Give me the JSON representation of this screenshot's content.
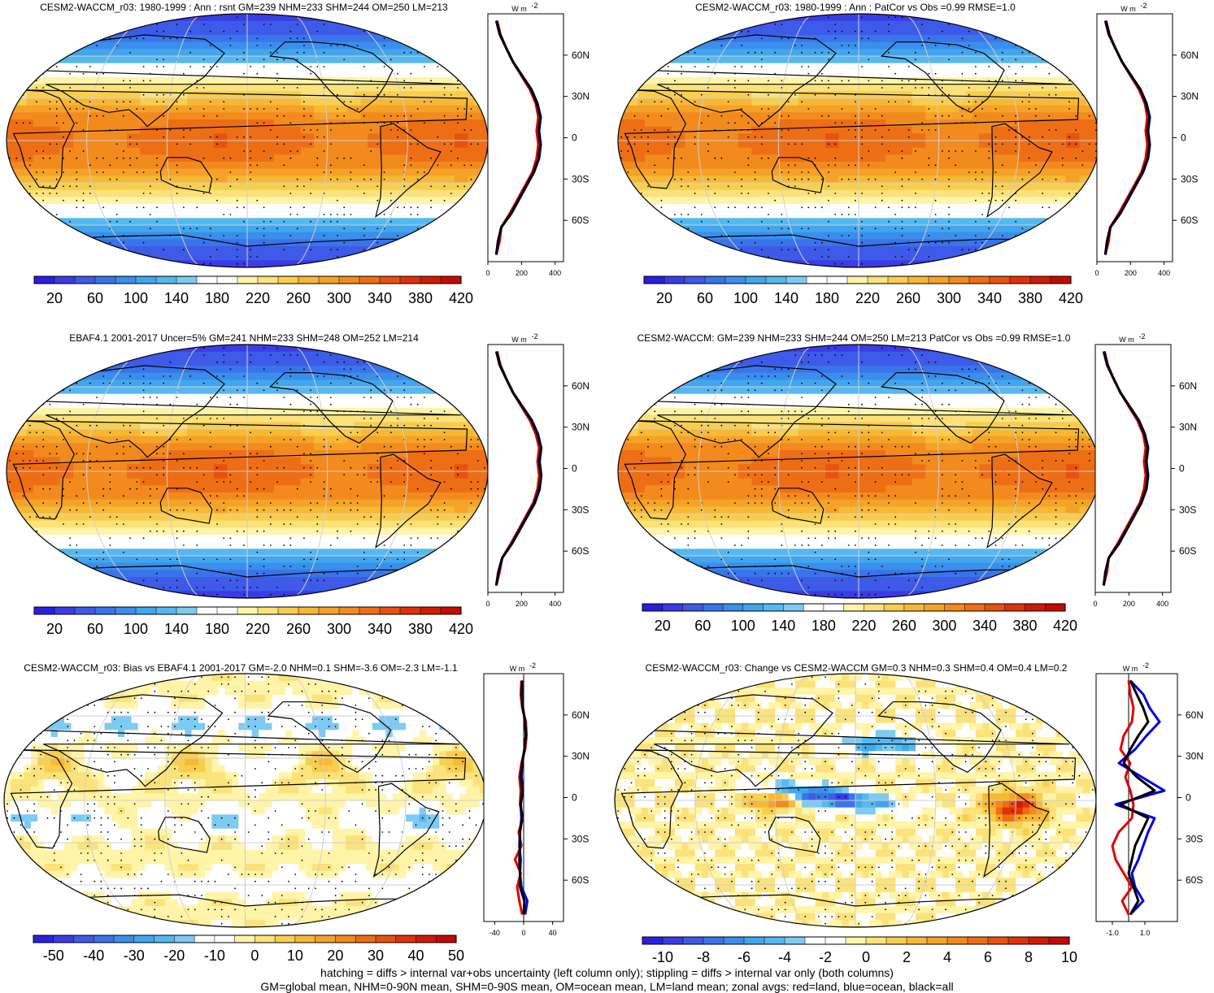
{
  "unit_label": "W m",
  "unit_exponent": "-2",
  "colorbar_full": {
    "colors": [
      "#2a1fe0",
      "#3a3ce6",
      "#3e5ae8",
      "#3a74ea",
      "#3b8eec",
      "#40a6ee",
      "#56b8f0",
      "#7dcaf2",
      "#ffffff",
      "#ffffff",
      "#fff4a8",
      "#fbe27a",
      "#f9cd4e",
      "#f7b833",
      "#f5a228",
      "#f28a1e",
      "#ee6e16",
      "#e9510f",
      "#e13109",
      "#d11a05",
      "#c40a02"
    ],
    "labels": [
      "20",
      "60",
      "100",
      "140",
      "180",
      "220",
      "260",
      "300",
      "340",
      "380",
      "420"
    ]
  },
  "colorbar_bias": {
    "colors": [
      "#2a1fe0",
      "#3a3ce6",
      "#3e5ae8",
      "#3a74ea",
      "#3b8eec",
      "#40a6ee",
      "#56b8f0",
      "#7dcaf2",
      "#ffffff",
      "#ffffff",
      "#fff4a8",
      "#fbe27a",
      "#f9cd4e",
      "#f7b833",
      "#f5a228",
      "#f28a1e",
      "#ee6e16",
      "#e9510f",
      "#e13109",
      "#d11a05",
      "#c40a02"
    ],
    "labels": [
      "-50",
      "-40",
      "-30",
      "-20",
      "-10",
      "0",
      "10",
      "20",
      "30",
      "40",
      "50"
    ]
  },
  "colorbar_change": {
    "colors": [
      "#2a1fe0",
      "#3a3ce6",
      "#3e5ae8",
      "#3a74ea",
      "#3b8eec",
      "#40a6ee",
      "#56b8f0",
      "#7dcaf2",
      "#ffffff",
      "#ffffff",
      "#fff4a8",
      "#fbe27a",
      "#f9cd4e",
      "#f7b833",
      "#f5a228",
      "#f28a1e",
      "#ee6e16",
      "#e9510f",
      "#e13109",
      "#d11a05",
      "#c40a02"
    ],
    "labels": [
      "-10",
      "-8",
      "-6",
      "-4",
      "-2",
      "0",
      "2",
      "4",
      "6",
      "8",
      "10"
    ]
  },
  "chart_data": [
    {
      "type": "heatmap",
      "title": "CESM2-WACCM_r03: 1980-1999 : Ann : rsnt GM=239 NHM=233 SHM=244 OM=250 LM=213",
      "field": "mean",
      "colorbar": "colorbar_full",
      "profile": {
        "type": "line",
        "xticks": [
          "0",
          "200",
          "400"
        ],
        "xlim": [
          0,
          450
        ],
        "yticks": [
          "60N",
          "30N",
          "0",
          "30S",
          "60S"
        ],
        "lat": [
          -85,
          -75,
          -65,
          -55,
          -45,
          -35,
          -25,
          -15,
          -5,
          5,
          15,
          25,
          35,
          45,
          55,
          65,
          75,
          85
        ],
        "series": [
          {
            "name": "red",
            "color": "#e00000",
            "values": [
              50,
              70,
              80,
              130,
              175,
              220,
              265,
              290,
              300,
              290,
              300,
              285,
              250,
              200,
              150,
              110,
              75,
              55
            ]
          },
          {
            "name": "blue",
            "color": "#0000e0",
            "values": [
              50,
              60,
              80,
              140,
              185,
              230,
              275,
              305,
              315,
              305,
              315,
              295,
              260,
              205,
              150,
              110,
              70,
              50
            ]
          },
          {
            "name": "black",
            "color": "#000000",
            "values": [
              50,
              62,
              80,
              138,
              183,
              228,
              272,
              302,
              312,
              302,
              312,
              292,
              258,
              204,
              150,
              110,
              72,
              52
            ]
          }
        ]
      }
    },
    {
      "type": "heatmap",
      "title": "CESM2-WACCM_r03: 1980-1999 : Ann : PatCor vs Obs =0.99 RMSE=1.0",
      "field": "mean",
      "colorbar": "colorbar_full",
      "profile": {
        "type": "line",
        "xticks": [
          "0",
          "200",
          "400"
        ],
        "xlim": [
          0,
          450
        ],
        "yticks": [
          "60N",
          "30N",
          "0",
          "30S",
          "60S"
        ],
        "lat": [
          -85,
          -75,
          -65,
          -55,
          -45,
          -35,
          -25,
          -15,
          -5,
          5,
          15,
          25,
          35,
          45,
          55,
          65,
          75,
          85
        ],
        "series": [
          {
            "name": "red",
            "color": "#e00000",
            "values": [
              50,
              70,
              80,
              130,
              175,
              220,
              265,
              290,
              300,
              290,
              300,
              285,
              250,
              200,
              150,
              110,
              75,
              55
            ]
          },
          {
            "name": "blue",
            "color": "#0000e0",
            "values": [
              50,
              60,
              80,
              140,
              185,
              230,
              275,
              305,
              315,
              305,
              315,
              295,
              260,
              205,
              150,
              110,
              70,
              50
            ]
          },
          {
            "name": "black",
            "color": "#000000",
            "values": [
              50,
              62,
              80,
              138,
              183,
              228,
              272,
              302,
              312,
              302,
              312,
              292,
              258,
              204,
              150,
              110,
              72,
              52
            ]
          }
        ]
      }
    },
    {
      "type": "heatmap",
      "title": "EBAF4.1 2001-2017 Uncer=5% GM=241 NHM=233 SHM=248 OM=252 LM=214",
      "field": "mean",
      "colorbar": "colorbar_full",
      "profile": {
        "type": "line",
        "xticks": [
          "0",
          "200",
          "400"
        ],
        "xlim": [
          0,
          450
        ],
        "yticks": [
          "60N",
          "30N",
          "0",
          "30S",
          "60S"
        ],
        "lat": [
          -85,
          -75,
          -65,
          -55,
          -45,
          -35,
          -25,
          -15,
          -5,
          5,
          15,
          25,
          35,
          45,
          55,
          65,
          75,
          85
        ],
        "series": [
          {
            "name": "red",
            "color": "#e00000",
            "values": [
              50,
              70,
              85,
              135,
              180,
              225,
              270,
              295,
              305,
              295,
              305,
              285,
              250,
              200,
              150,
              110,
              75,
              55
            ]
          },
          {
            "name": "blue",
            "color": "#0000e0",
            "values": [
              50,
              62,
              85,
              142,
              188,
              234,
              280,
              308,
              318,
              308,
              318,
              298,
              262,
              206,
              150,
              110,
              70,
              50
            ]
          },
          {
            "name": "black",
            "color": "#000000",
            "values": [
              50,
              64,
              85,
              140,
              186,
              231,
              277,
              305,
              315,
              305,
              315,
              295,
              259,
              205,
              150,
              110,
              72,
              52
            ]
          }
        ]
      }
    },
    {
      "type": "heatmap",
      "title": "CESM2-WACCM: GM=239 NHM=233 SHM=244 OM=250 LM=213 PatCor vs Obs =0.99 RMSE=1.0",
      "field": "mean",
      "colorbar": "colorbar_full",
      "profile": {
        "type": "line",
        "xticks": [
          "0",
          "200",
          "400"
        ],
        "xlim": [
          0,
          450
        ],
        "yticks": [
          "60N",
          "30N",
          "0",
          "30S",
          "60S"
        ],
        "lat": [
          -85,
          -75,
          -65,
          -55,
          -45,
          -35,
          -25,
          -15,
          -5,
          5,
          15,
          25,
          35,
          45,
          55,
          65,
          75,
          85
        ],
        "series": [
          {
            "name": "red",
            "color": "#e00000",
            "values": [
              50,
              70,
              80,
              130,
              175,
              220,
              265,
              290,
              300,
              290,
              300,
              285,
              250,
              200,
              150,
              110,
              75,
              55
            ]
          },
          {
            "name": "blue",
            "color": "#0000e0",
            "values": [
              50,
              60,
              80,
              140,
              185,
              230,
              275,
              305,
              315,
              305,
              315,
              295,
              260,
              205,
              150,
              110,
              70,
              50
            ]
          },
          {
            "name": "black",
            "color": "#000000",
            "values": [
              50,
              62,
              80,
              138,
              183,
              228,
              272,
              302,
              312,
              302,
              312,
              292,
              258,
              204,
              150,
              110,
              72,
              52
            ]
          }
        ]
      }
    },
    {
      "type": "heatmap",
      "title": "CESM2-WACCM_r03: Bias vs EBAF4.1 2001-2017 GM=-2.0 NHM=0.1 SHM=-3.6 OM=-2.3 LM=-1.1",
      "field": "bias",
      "colorbar": "colorbar_bias",
      "profile": {
        "type": "line",
        "xticks": [
          "-40",
          "0",
          "40"
        ],
        "xlim": [
          -55,
          55
        ],
        "yticks": [
          "60N",
          "30N",
          "0",
          "30S",
          "60S"
        ],
        "lat": [
          -85,
          -75,
          -65,
          -55,
          -45,
          -35,
          -25,
          -15,
          -5,
          5,
          15,
          25,
          35,
          45,
          55,
          65,
          75,
          85
        ],
        "series": [
          {
            "name": "red",
            "color": "#e00000",
            "values": [
              -2,
              -6,
              -9,
              -4,
              -12,
              -3,
              -7,
              -1,
              -5,
              -4,
              -6,
              -3,
              2,
              4,
              3,
              -2,
              -4,
              -3
            ]
          },
          {
            "name": "blue",
            "color": "#0000e0",
            "values": [
              2,
              5,
              -3,
              -5,
              -4,
              -6,
              -5,
              -3,
              -4,
              -1,
              -3,
              -2,
              1,
              3,
              2,
              -1,
              -2,
              -1
            ]
          },
          {
            "name": "black",
            "color": "#000000",
            "values": [
              0,
              1,
              -5,
              -5,
              -6,
              -5,
              -5,
              -2,
              -4,
              -2,
              -4,
              -2,
              1,
              3,
              2,
              -1,
              -3,
              -2
            ]
          }
        ]
      }
    },
    {
      "type": "heatmap",
      "title": "CESM2-WACCM_r03: Change vs CESM2-WACCM GM=0.3 NHM=0.3 SHM=0.4 OM=0.4 LM=0.2",
      "field": "change",
      "colorbar": "colorbar_change",
      "profile": {
        "type": "line",
        "xticks": [
          "-1.0",
          "1.0"
        ],
        "xlim": [
          -2.0,
          3.0
        ],
        "yticks": [
          "60N",
          "30N",
          "0",
          "30S",
          "60S"
        ],
        "lat": [
          -85,
          -75,
          -65,
          -55,
          -45,
          -35,
          -25,
          -15,
          -5,
          5,
          15,
          25,
          35,
          45,
          55,
          65,
          75,
          85
        ],
        "series": [
          {
            "name": "red",
            "color": "#e00000",
            "values": [
              0.0,
              -0.4,
              0.2,
              -0.3,
              -0.8,
              -1.0,
              -0.6,
              0.2,
              0.3,
              0.1,
              -0.2,
              0.1,
              -0.5,
              -0.3,
              0.2,
              0.3,
              0.1,
              0.0
            ]
          },
          {
            "name": "blue",
            "color": "#0000e0",
            "values": [
              0.1,
              0.9,
              0.4,
              0.2,
              0.6,
              0.9,
              1.2,
              1.6,
              -0.8,
              2.2,
              0.8,
              -0.6,
              0.4,
              1.1,
              1.9,
              1.3,
              0.9,
              0.1
            ]
          },
          {
            "name": "black",
            "color": "#000000",
            "values": [
              0.1,
              0.6,
              0.3,
              0.0,
              0.2,
              0.4,
              0.8,
              1.2,
              -0.5,
              1.6,
              0.5,
              -0.3,
              0.1,
              0.6,
              1.2,
              0.9,
              0.5,
              0.1
            ]
          }
        ]
      }
    }
  ],
  "footer": {
    "line1": "hatching = diffs > internal var+obs uncertainty (left column only); stippling = diffs > internal var only (both columns)",
    "line2": "GM=global mean, NHM=0-90N mean, SHM=0-90S mean, OM=ocean mean, LM=land mean; zonal avgs: red=land, blue=ocean, black=all"
  }
}
